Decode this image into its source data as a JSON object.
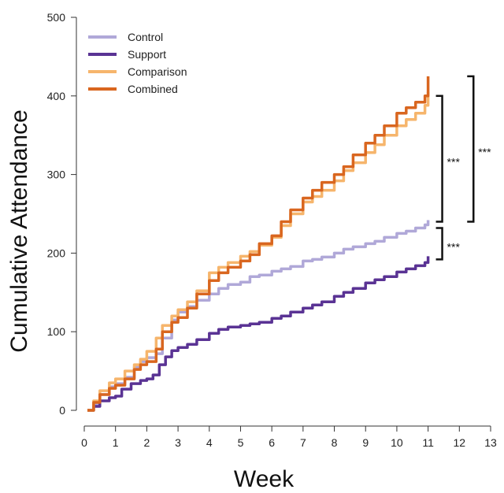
{
  "chart_data": {
    "type": "line",
    "title": "",
    "xlabel": "Week",
    "ylabel": "Cumulative Attendance",
    "xlim": [
      0,
      13
    ],
    "ylim": [
      0,
      500
    ],
    "xticks": [
      "0",
      "1",
      "2",
      "3",
      "4",
      "5",
      "6",
      "7",
      "8",
      "9",
      "10",
      "11",
      "12",
      "13"
    ],
    "yticks": [
      "0",
      "100",
      "200",
      "300",
      "400",
      "500"
    ],
    "legend_position": "top-left",
    "series": [
      {
        "name": "Control",
        "color": "#b0a8d8",
        "points": [
          [
            0.1,
            0
          ],
          [
            0.3,
            8
          ],
          [
            0.5,
            20
          ],
          [
            0.8,
            30
          ],
          [
            1.0,
            34
          ],
          [
            1.3,
            42
          ],
          [
            1.6,
            55
          ],
          [
            1.8,
            62
          ],
          [
            2.0,
            67
          ],
          [
            2.3,
            72
          ],
          [
            2.5,
            92
          ],
          [
            2.8,
            115
          ],
          [
            3.0,
            125
          ],
          [
            3.3,
            132
          ],
          [
            3.6,
            140
          ],
          [
            4.0,
            148
          ],
          [
            4.3,
            155
          ],
          [
            4.6,
            160
          ],
          [
            5.0,
            163
          ],
          [
            5.3,
            170
          ],
          [
            5.6,
            172
          ],
          [
            6.0,
            177
          ],
          [
            6.3,
            180
          ],
          [
            6.6,
            183
          ],
          [
            7.0,
            190
          ],
          [
            7.3,
            192
          ],
          [
            7.6,
            195
          ],
          [
            8.0,
            200
          ],
          [
            8.3,
            205
          ],
          [
            8.6,
            208
          ],
          [
            9.0,
            212
          ],
          [
            9.3,
            215
          ],
          [
            9.6,
            220
          ],
          [
            10.0,
            225
          ],
          [
            10.3,
            228
          ],
          [
            10.6,
            232
          ],
          [
            10.9,
            236
          ],
          [
            11.0,
            242
          ]
        ]
      },
      {
        "name": "Support",
        "color": "#5a3394",
        "points": [
          [
            0.1,
            0
          ],
          [
            0.3,
            5
          ],
          [
            0.5,
            12
          ],
          [
            0.8,
            16
          ],
          [
            1.0,
            18
          ],
          [
            1.2,
            27
          ],
          [
            1.5,
            34
          ],
          [
            1.8,
            38
          ],
          [
            2.0,
            40
          ],
          [
            2.2,
            45
          ],
          [
            2.4,
            58
          ],
          [
            2.6,
            68
          ],
          [
            2.8,
            76
          ],
          [
            3.0,
            80
          ],
          [
            3.3,
            84
          ],
          [
            3.6,
            90
          ],
          [
            4.0,
            98
          ],
          [
            4.3,
            103
          ],
          [
            4.6,
            106
          ],
          [
            5.0,
            108
          ],
          [
            5.3,
            110
          ],
          [
            5.6,
            112
          ],
          [
            6.0,
            117
          ],
          [
            6.3,
            120
          ],
          [
            6.6,
            125
          ],
          [
            7.0,
            130
          ],
          [
            7.3,
            134
          ],
          [
            7.6,
            138
          ],
          [
            8.0,
            145
          ],
          [
            8.3,
            150
          ],
          [
            8.6,
            155
          ],
          [
            9.0,
            162
          ],
          [
            9.3,
            166
          ],
          [
            9.6,
            170
          ],
          [
            10.0,
            176
          ],
          [
            10.3,
            180
          ],
          [
            10.6,
            184
          ],
          [
            10.9,
            188
          ],
          [
            11.0,
            196
          ]
        ]
      },
      {
        "name": "Comparison",
        "color": "#f6b56c",
        "points": [
          [
            0.1,
            0
          ],
          [
            0.3,
            12
          ],
          [
            0.5,
            25
          ],
          [
            0.8,
            35
          ],
          [
            1.0,
            40
          ],
          [
            1.3,
            50
          ],
          [
            1.6,
            58
          ],
          [
            1.8,
            65
          ],
          [
            2.0,
            75
          ],
          [
            2.3,
            92
          ],
          [
            2.5,
            108
          ],
          [
            2.8,
            120
          ],
          [
            3.0,
            128
          ],
          [
            3.3,
            138
          ],
          [
            3.6,
            152
          ],
          [
            4.0,
            175
          ],
          [
            4.3,
            182
          ],
          [
            4.6,
            188
          ],
          [
            5.0,
            196
          ],
          [
            5.3,
            202
          ],
          [
            5.6,
            210
          ],
          [
            6.0,
            220
          ],
          [
            6.3,
            235
          ],
          [
            6.6,
            250
          ],
          [
            7.0,
            265
          ],
          [
            7.3,
            272
          ],
          [
            7.6,
            280
          ],
          [
            8.0,
            292
          ],
          [
            8.3,
            305
          ],
          [
            8.6,
            315
          ],
          [
            9.0,
            328
          ],
          [
            9.3,
            338
          ],
          [
            9.6,
            350
          ],
          [
            10.0,
            362
          ],
          [
            10.3,
            370
          ],
          [
            10.6,
            378
          ],
          [
            10.9,
            388
          ],
          [
            11.0,
            405
          ]
        ]
      },
      {
        "name": "Combined",
        "color": "#d9661f",
        "points": [
          [
            0.1,
            0
          ],
          [
            0.3,
            10
          ],
          [
            0.5,
            20
          ],
          [
            0.8,
            28
          ],
          [
            1.0,
            32
          ],
          [
            1.3,
            40
          ],
          [
            1.6,
            52
          ],
          [
            1.8,
            58
          ],
          [
            2.0,
            62
          ],
          [
            2.3,
            78
          ],
          [
            2.5,
            100
          ],
          [
            2.8,
            112
          ],
          [
            3.0,
            118
          ],
          [
            3.3,
            130
          ],
          [
            3.6,
            148
          ],
          [
            4.0,
            165
          ],
          [
            4.3,
            175
          ],
          [
            4.6,
            182
          ],
          [
            5.0,
            190
          ],
          [
            5.3,
            198
          ],
          [
            5.6,
            212
          ],
          [
            6.0,
            222
          ],
          [
            6.3,
            240
          ],
          [
            6.6,
            255
          ],
          [
            7.0,
            270
          ],
          [
            7.3,
            280
          ],
          [
            7.6,
            290
          ],
          [
            8.0,
            300
          ],
          [
            8.3,
            310
          ],
          [
            8.6,
            325
          ],
          [
            9.0,
            340
          ],
          [
            9.3,
            350
          ],
          [
            9.6,
            362
          ],
          [
            10.0,
            378
          ],
          [
            10.3,
            385
          ],
          [
            10.6,
            392
          ],
          [
            10.9,
            400
          ],
          [
            11.0,
            425
          ]
        ]
      }
    ],
    "annotations": [
      {
        "label": "***",
        "x": 11.2,
        "y_from": 240,
        "y_to": 400,
        "offset": 0
      },
      {
        "label": "***",
        "x": 11.2,
        "y_from": 192,
        "y_to": 232,
        "offset": 0
      },
      {
        "label": "***",
        "x": 12.2,
        "y_from": 240,
        "y_to": 425,
        "offset": 0
      }
    ]
  }
}
